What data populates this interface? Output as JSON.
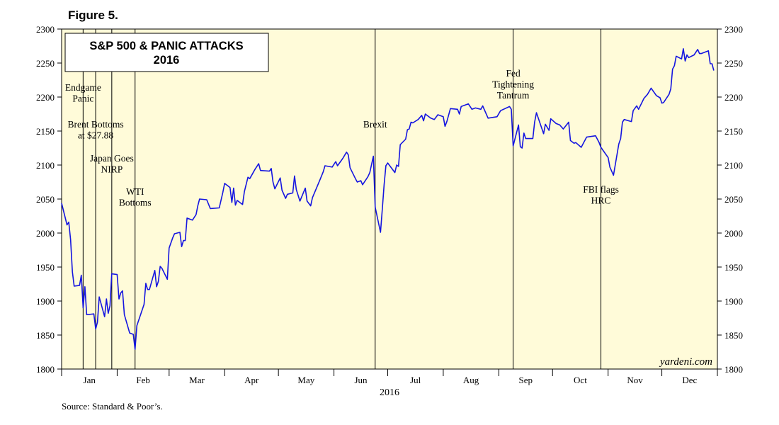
{
  "figure_label": "Figure 5.",
  "source": "Source: Standard & Poor’s.",
  "watermark": "yardeni.com",
  "colors": {
    "background": "#fffbd9",
    "line": "#1515e0",
    "frame": "#000000"
  },
  "chart_data": {
    "type": "line",
    "title": "S&P 500 & PANIC ATTACKS",
    "subtitle": "2016",
    "xlabel": "2016",
    "x_tick_labels": [
      "Jan",
      "Feb",
      "Mar",
      "Apr",
      "May",
      "Jun",
      "Jul",
      "Aug",
      "Sep",
      "Oct",
      "Nov",
      "Dec"
    ],
    "ylim": [
      1800,
      2300
    ],
    "y_ticks": [
      1800,
      1850,
      1900,
      1950,
      2000,
      2050,
      2100,
      2150,
      2200,
      2250,
      2300
    ],
    "grid": false,
    "series": [
      {
        "name": "",
        "points": [
          [
            "2016-01-01",
            2044
          ],
          [
            "2016-01-04",
            2012
          ],
          [
            "2016-01-05",
            2016
          ],
          [
            "2016-01-06",
            1990
          ],
          [
            "2016-01-07",
            1943
          ],
          [
            "2016-01-08",
            1922
          ],
          [
            "2016-01-11",
            1923
          ],
          [
            "2016-01-12",
            1938
          ],
          [
            "2016-01-13",
            1890
          ],
          [
            "2016-01-14",
            1921
          ],
          [
            "2016-01-15",
            1880
          ],
          [
            "2016-01-19",
            1881
          ],
          [
            "2016-01-20",
            1859
          ],
          [
            "2016-01-21",
            1869
          ],
          [
            "2016-01-22",
            1906
          ],
          [
            "2016-01-25",
            1877
          ],
          [
            "2016-01-26",
            1903
          ],
          [
            "2016-01-27",
            1882
          ],
          [
            "2016-01-28",
            1893
          ],
          [
            "2016-01-29",
            1940
          ],
          [
            "2016-02-01",
            1939
          ],
          [
            "2016-02-02",
            1903
          ],
          [
            "2016-02-03",
            1912
          ],
          [
            "2016-02-04",
            1915
          ],
          [
            "2016-02-05",
            1880
          ],
          [
            "2016-02-08",
            1853
          ],
          [
            "2016-02-09",
            1852
          ],
          [
            "2016-02-10",
            1851
          ],
          [
            "2016-02-11",
            1829
          ],
          [
            "2016-02-12",
            1864
          ],
          [
            "2016-02-16",
            1895
          ],
          [
            "2016-02-17",
            1926
          ],
          [
            "2016-02-18",
            1917
          ],
          [
            "2016-02-19",
            1917
          ],
          [
            "2016-02-22",
            1945
          ],
          [
            "2016-02-23",
            1921
          ],
          [
            "2016-02-24",
            1929
          ],
          [
            "2016-02-25",
            1951
          ],
          [
            "2016-02-26",
            1948
          ],
          [
            "2016-02-29",
            1932
          ],
          [
            "2016-03-01",
            1978
          ],
          [
            "2016-03-03",
            1993
          ],
          [
            "2016-03-04",
            1999
          ],
          [
            "2016-03-07",
            2001
          ],
          [
            "2016-03-08",
            1980
          ],
          [
            "2016-03-09",
            1989
          ],
          [
            "2016-03-10",
            1989
          ],
          [
            "2016-03-11",
            2022
          ],
          [
            "2016-03-14",
            2019
          ],
          [
            "2016-03-16",
            2027
          ],
          [
            "2016-03-17",
            2040
          ],
          [
            "2016-03-18",
            2050
          ],
          [
            "2016-03-22",
            2049
          ],
          [
            "2016-03-24",
            2036
          ],
          [
            "2016-03-29",
            2037
          ],
          [
            "2016-03-31",
            2060
          ],
          [
            "2016-04-01",
            2073
          ],
          [
            "2016-04-04",
            2067
          ],
          [
            "2016-04-05",
            2045
          ],
          [
            "2016-04-06",
            2066
          ],
          [
            "2016-04-07",
            2041
          ],
          [
            "2016-04-08",
            2048
          ],
          [
            "2016-04-11",
            2042
          ],
          [
            "2016-04-12",
            2061
          ],
          [
            "2016-04-14",
            2082
          ],
          [
            "2016-04-15",
            2080
          ],
          [
            "2016-04-18",
            2094
          ],
          [
            "2016-04-20",
            2102
          ],
          [
            "2016-04-21",
            2092
          ],
          [
            "2016-04-26",
            2091
          ],
          [
            "2016-04-27",
            2095
          ],
          [
            "2016-04-28",
            2075
          ],
          [
            "2016-04-29",
            2065
          ],
          [
            "2016-05-02",
            2081
          ],
          [
            "2016-05-03",
            2063
          ],
          [
            "2016-05-05",
            2051
          ],
          [
            "2016-05-06",
            2057
          ],
          [
            "2016-05-09",
            2059
          ],
          [
            "2016-05-10",
            2084
          ],
          [
            "2016-05-11",
            2064
          ],
          [
            "2016-05-13",
            2047
          ],
          [
            "2016-05-16",
            2066
          ],
          [
            "2016-05-17",
            2047
          ],
          [
            "2016-05-19",
            2040
          ],
          [
            "2016-05-20",
            2052
          ],
          [
            "2016-05-24",
            2077
          ],
          [
            "2016-05-26",
            2090
          ],
          [
            "2016-05-27",
            2099
          ],
          [
            "2016-05-31",
            2097
          ],
          [
            "2016-06-02",
            2105
          ],
          [
            "2016-06-03",
            2099
          ],
          [
            "2016-06-06",
            2110
          ],
          [
            "2016-06-08",
            2119
          ],
          [
            "2016-06-09",
            2115
          ],
          [
            "2016-06-10",
            2096
          ],
          [
            "2016-06-13",
            2080
          ],
          [
            "2016-06-14",
            2075
          ],
          [
            "2016-06-16",
            2077
          ],
          [
            "2016-06-17",
            2071
          ],
          [
            "2016-06-20",
            2083
          ],
          [
            "2016-06-21",
            2089
          ],
          [
            "2016-06-23",
            2113
          ],
          [
            "2016-06-24",
            2038
          ],
          [
            "2016-06-27",
            2001
          ],
          [
            "2016-06-28",
            2036
          ],
          [
            "2016-06-29",
            2071
          ],
          [
            "2016-06-30",
            2099
          ],
          [
            "2016-07-01",
            2103
          ],
          [
            "2016-07-05",
            2089
          ],
          [
            "2016-07-06",
            2100
          ],
          [
            "2016-07-07",
            2098
          ],
          [
            "2016-07-08",
            2130
          ],
          [
            "2016-07-11",
            2138
          ],
          [
            "2016-07-12",
            2152
          ],
          [
            "2016-07-13",
            2153
          ],
          [
            "2016-07-14",
            2163
          ],
          [
            "2016-07-15",
            2162
          ],
          [
            "2016-07-18",
            2167
          ],
          [
            "2016-07-20",
            2173
          ],
          [
            "2016-07-21",
            2165
          ],
          [
            "2016-07-22",
            2175
          ],
          [
            "2016-07-25",
            2169
          ],
          [
            "2016-07-27",
            2167
          ],
          [
            "2016-07-29",
            2174
          ],
          [
            "2016-08-01",
            2171
          ],
          [
            "2016-08-02",
            2157
          ],
          [
            "2016-08-03",
            2164
          ],
          [
            "2016-08-05",
            2183
          ],
          [
            "2016-08-09",
            2182
          ],
          [
            "2016-08-10",
            2175
          ],
          [
            "2016-08-11",
            2186
          ],
          [
            "2016-08-15",
            2190
          ],
          [
            "2016-08-17",
            2182
          ],
          [
            "2016-08-19",
            2184
          ],
          [
            "2016-08-22",
            2182
          ],
          [
            "2016-08-23",
            2187
          ],
          [
            "2016-08-26",
            2169
          ],
          [
            "2016-08-31",
            2171
          ],
          [
            "2016-09-02",
            2180
          ],
          [
            "2016-09-07",
            2186
          ],
          [
            "2016-09-08",
            2182
          ],
          [
            "2016-09-09",
            2128
          ],
          [
            "2016-09-12",
            2159
          ],
          [
            "2016-09-13",
            2127
          ],
          [
            "2016-09-14",
            2125
          ],
          [
            "2016-09-15",
            2147
          ],
          [
            "2016-09-16",
            2139
          ],
          [
            "2016-09-19",
            2139
          ],
          [
            "2016-09-20",
            2139
          ],
          [
            "2016-09-21",
            2163
          ],
          [
            "2016-09-22",
            2177
          ],
          [
            "2016-09-26",
            2146
          ],
          [
            "2016-09-27",
            2160
          ],
          [
            "2016-09-29",
            2151
          ],
          [
            "2016-09-30",
            2168
          ],
          [
            "2016-10-03",
            2161
          ],
          [
            "2016-10-05",
            2159
          ],
          [
            "2016-10-07",
            2153
          ],
          [
            "2016-10-10",
            2163
          ],
          [
            "2016-10-11",
            2136
          ],
          [
            "2016-10-13",
            2132
          ],
          [
            "2016-10-14",
            2133
          ],
          [
            "2016-10-17",
            2126
          ],
          [
            "2016-10-20",
            2141
          ],
          [
            "2016-10-25",
            2143
          ],
          [
            "2016-10-27",
            2133
          ],
          [
            "2016-10-28",
            2126
          ],
          [
            "2016-11-01",
            2111
          ],
          [
            "2016-11-02",
            2097
          ],
          [
            "2016-11-04",
            2085
          ],
          [
            "2016-11-07",
            2131
          ],
          [
            "2016-11-08",
            2139
          ],
          [
            "2016-11-09",
            2163
          ],
          [
            "2016-11-10",
            2167
          ],
          [
            "2016-11-14",
            2164
          ],
          [
            "2016-11-15",
            2180
          ],
          [
            "2016-11-17",
            2187
          ],
          [
            "2016-11-18",
            2182
          ],
          [
            "2016-11-21",
            2198
          ],
          [
            "2016-11-23",
            2204
          ],
          [
            "2016-11-25",
            2213
          ],
          [
            "2016-11-28",
            2202
          ],
          [
            "2016-11-30",
            2199
          ],
          [
            "2016-12-01",
            2191
          ],
          [
            "2016-12-02",
            2192
          ],
          [
            "2016-12-05",
            2204
          ],
          [
            "2016-12-06",
            2212
          ],
          [
            "2016-12-07",
            2241
          ],
          [
            "2016-12-08",
            2246
          ],
          [
            "2016-12-09",
            2260
          ],
          [
            "2016-12-12",
            2256
          ],
          [
            "2016-12-13",
            2271
          ],
          [
            "2016-12-14",
            2253
          ],
          [
            "2016-12-15",
            2262
          ],
          [
            "2016-12-16",
            2258
          ],
          [
            "2016-12-19",
            2262
          ],
          [
            "2016-12-21",
            2270
          ],
          [
            "2016-12-22",
            2264
          ],
          [
            "2016-12-23",
            2264
          ],
          [
            "2016-12-27",
            2268
          ],
          [
            "2016-12-28",
            2249
          ],
          [
            "2016-12-29",
            2249
          ],
          [
            "2016-12-30",
            2239
          ]
        ]
      }
    ],
    "annotations": [
      {
        "date": "2016-01-13",
        "lines": [
          "Endgame",
          "Panic"
        ]
      },
      {
        "date": "2016-01-20",
        "lines": [
          "Brent Bottoms",
          "at $27.88"
        ]
      },
      {
        "date": "2016-01-29",
        "lines": [
          "Japan Goes",
          "NIRP"
        ]
      },
      {
        "date": "2016-02-11",
        "lines": [
          "WTI",
          "Bottoms"
        ]
      },
      {
        "date": "2016-06-24",
        "lines": [
          "Brexit"
        ]
      },
      {
        "date": "2016-09-09",
        "lines": [
          "Fed",
          "Tightening",
          "Tantrum"
        ]
      },
      {
        "date": "2016-10-28",
        "lines": [
          "FBI flags",
          "HRC"
        ]
      }
    ]
  }
}
